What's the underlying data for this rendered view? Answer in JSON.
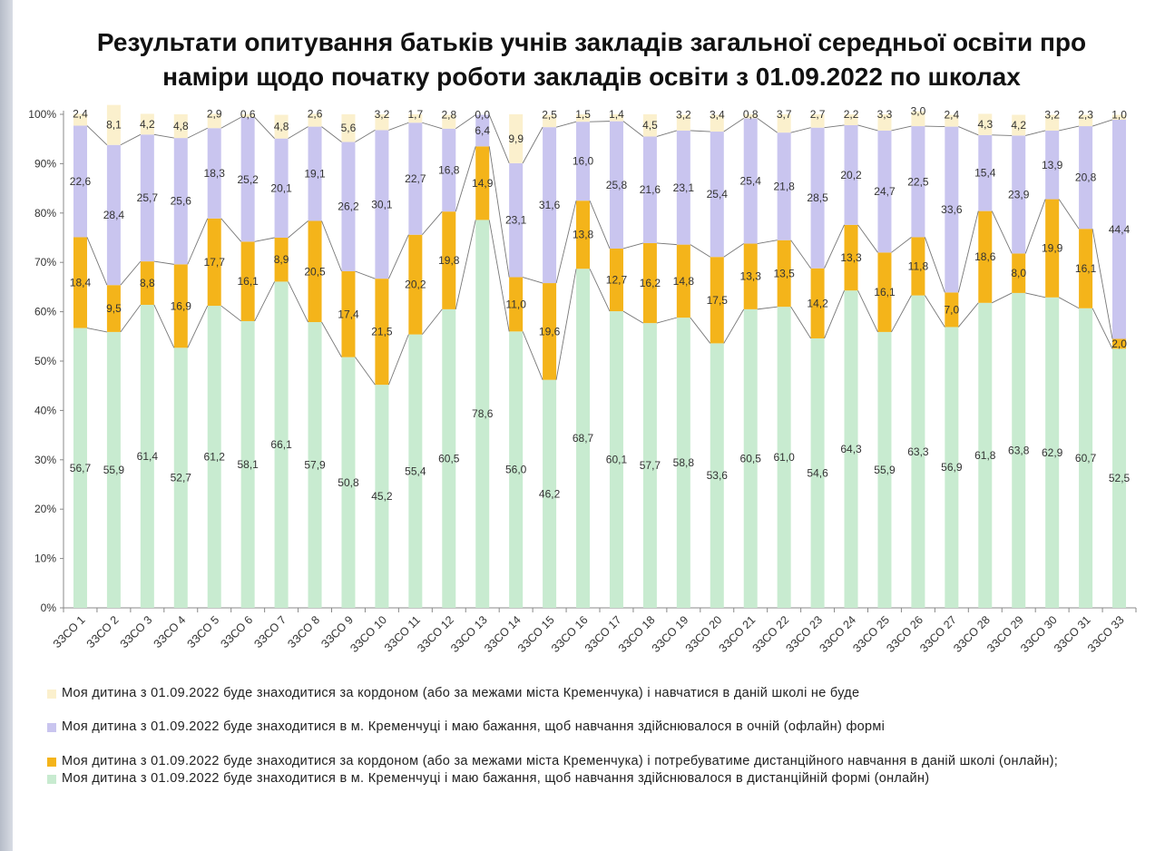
{
  "title_lines": [
    "Результати опитування батьків учнів закладів загальної середньої освіти про",
    "наміри щодо початку роботи закладів освіти з 01.09.2022 по школах"
  ],
  "colors": {
    "online": "#c8ebd0",
    "abroad_online": "#f4b41a",
    "offline": "#c9c5ef",
    "abroad_none": "#fbf0cd"
  },
  "legend": [
    {
      "key": "abroad_none",
      "text": "Моя дитина  з 01.09.2022  буде  знаходитися  за кордоном  (або за межами  міста Кременчука)  і навчатися  в даній школі не буде"
    },
    {
      "key": "offline",
      "text": "Моя дитина  з 01.09.2022  буде  знаходитися  в м.  Кременчуці  і маю бажання,  щоб навчання  здійснювалося  в очній  (офлайн)  формі"
    },
    {
      "key": "abroad_online",
      "text": "Моя дитина  з 01.09.2022  буде  знаходитися  за кордоном  (або за межами  міста Кременчука)  і потребуватиме  дистанційного  навчання  в даній школі (онлайн);"
    },
    {
      "key": "online",
      "text": "Моя дитина  з 01.09.2022  буде  знаходитися  в м.  Кременчуці  і маю бажання,  щоб навчання  здійснювалося  в дистанційній  формі  (онлайн)"
    }
  ],
  "chart_data": {
    "type": "bar",
    "stacked": true,
    "title": "Результати опитування батьків учнів закладів загальної середньої освіти про наміри щодо початку роботи закладів освіти з 01.09.2022 по школах",
    "ylim": [
      0,
      100
    ],
    "y_ticks": [
      "0%",
      "10%",
      "20%",
      "30%",
      "40%",
      "50%",
      "60%",
      "70%",
      "80%",
      "90%",
      "100%"
    ],
    "categories": [
      "ЗЗСО 1",
      "ЗЗСО 2",
      "ЗЗСО 3",
      "ЗЗСО 4",
      "ЗЗСО 5",
      "ЗЗСО 6",
      "ЗЗСО 7",
      "ЗЗСО 8",
      "ЗЗСО 9",
      "ЗЗСО 10",
      "ЗЗСО 11",
      "ЗЗСО 12",
      "ЗЗСО 13",
      "ЗЗСО 14",
      "ЗЗСО 15",
      "ЗЗСО 16",
      "ЗЗСО 17",
      "ЗЗСО 18",
      "ЗЗСО 19",
      "ЗЗСО 20",
      "ЗЗСО 21",
      "ЗЗСО 22",
      "ЗЗСО 23",
      "ЗЗСО 24",
      "ЗЗСО 25",
      "ЗЗСО 26",
      "ЗЗСО 27",
      "ЗЗСО 28",
      "ЗЗСО 29",
      "ЗЗСО 30",
      "ЗЗСО 31",
      "ЗЗСО 33"
    ],
    "series": [
      {
        "name": "online",
        "labels": [
          "56,7",
          "55,9",
          "61,4",
          "52,7",
          "61,2",
          "58,1",
          "66,1",
          "57,9",
          "50,8",
          "45,2",
          "55,4",
          "60,5",
          "78,6",
          "56,0",
          "46,2",
          "68,7",
          "60,1",
          "57,7",
          "58,8",
          "53,6",
          "60,5",
          "61,0",
          "54,6",
          "64,3",
          "55,9",
          "63,3",
          "56,9",
          "61,8",
          "63,8",
          "62,9",
          "60,7",
          "52,5"
        ],
        "values": [
          56.7,
          55.9,
          61.4,
          52.7,
          61.2,
          58.1,
          66.1,
          57.9,
          50.8,
          45.2,
          55.4,
          60.5,
          78.6,
          56.0,
          46.2,
          68.7,
          60.1,
          57.7,
          58.8,
          53.6,
          60.5,
          61.0,
          54.6,
          64.3,
          55.9,
          63.3,
          56.9,
          61.8,
          63.8,
          62.9,
          60.7,
          52.5
        ]
      },
      {
        "name": "abroad_online",
        "labels": [
          "18,4",
          "9,5",
          "8,8",
          "16,9",
          "17,7",
          "16,1",
          "8,9",
          "20,5",
          "17,4",
          "21,5",
          "20,2",
          "19,8",
          "14,9",
          "11,0",
          "19,6",
          "13,8",
          "12,7",
          "16,2",
          "14,8",
          "17,5",
          "13,3",
          "13,5",
          "14,2",
          "13,3",
          "16,1",
          "11,8",
          "7,0",
          "18,6",
          "8,0",
          "19,9",
          "16,1",
          "2,0"
        ],
        "values": [
          18.4,
          9.5,
          8.8,
          16.9,
          17.7,
          16.1,
          8.9,
          20.5,
          17.4,
          21.5,
          20.2,
          19.8,
          14.9,
          11.0,
          19.6,
          13.8,
          12.7,
          16.2,
          14.8,
          17.5,
          13.3,
          13.5,
          14.2,
          13.3,
          16.1,
          11.8,
          7.0,
          18.6,
          8.0,
          19.9,
          16.1,
          2.0
        ]
      },
      {
        "name": "offline",
        "labels": [
          "22,6",
          "28,4",
          "25,7",
          "25,6",
          "18,3",
          "25,2",
          "20,1",
          "19,1",
          "26,2",
          "30,1",
          "22,7",
          "16,8",
          "6,4",
          "23,1",
          "31,6",
          "16,0",
          "25,8",
          "21,6",
          "23,1",
          "25,4",
          "25,4",
          "21,8",
          "28,5",
          "20,2",
          "24,7",
          "22,5",
          "33,6",
          "15,4",
          "23,9",
          "13,9",
          "20,8",
          "44,4"
        ],
        "values": [
          22.6,
          28.4,
          25.7,
          25.6,
          18.3,
          25.2,
          20.1,
          19.1,
          26.2,
          30.1,
          22.7,
          16.8,
          6.4,
          23.1,
          31.6,
          16.0,
          25.8,
          21.6,
          23.1,
          25.4,
          25.4,
          21.8,
          28.5,
          20.2,
          24.7,
          22.5,
          33.6,
          15.4,
          23.9,
          13.9,
          20.8,
          44.4
        ]
      },
      {
        "name": "abroad_none",
        "labels": [
          "2,4",
          "8,1",
          "4,2",
          "4,8",
          "2,9",
          "0,6",
          "4,8",
          "2,6",
          "5,6",
          "3,2",
          "1,7",
          "2,8",
          "0,0",
          "9,9",
          "2,5",
          "1,5",
          "1,4",
          "4,5",
          "3,2",
          "3,4",
          "0,8",
          "3,7",
          "2,7",
          "2,2",
          "3,3",
          "3,0",
          "2,4",
          "4,3",
          "4,2",
          "3,2",
          "2,3",
          "1,0"
        ],
        "values": [
          2.4,
          8.1,
          4.2,
          4.8,
          2.9,
          0.6,
          4.8,
          2.6,
          5.6,
          3.2,
          1.7,
          2.8,
          0.0,
          9.9,
          2.5,
          1.5,
          1.4,
          4.5,
          3.2,
          3.4,
          0.8,
          3.7,
          2.7,
          2.2,
          3.3,
          3.0,
          2.4,
          4.3,
          4.2,
          3.2,
          2.3,
          1.0
        ]
      }
    ]
  }
}
